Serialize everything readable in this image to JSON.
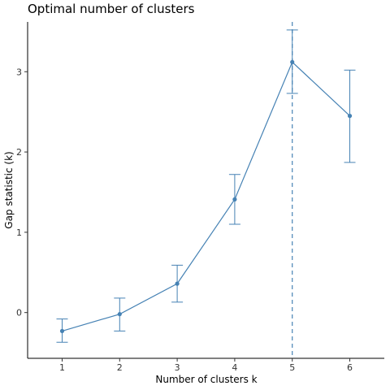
{
  "chart_data": {
    "type": "line",
    "title": "Optimal number of clusters",
    "xlabel": "Number of clusters k",
    "ylabel": "Gap statistic (k)",
    "x": [
      1,
      2,
      3,
      4,
      5,
      6
    ],
    "x_tick_labels": [
      "1",
      "2",
      "3",
      "4",
      "5",
      "6"
    ],
    "y_ticks": [
      0,
      1,
      2,
      3
    ],
    "y_tick_labels": [
      "0",
      "1",
      "2",
      "3"
    ],
    "xlim": [
      0.4,
      6.6
    ],
    "ylim": [
      -0.57,
      3.62
    ],
    "series": [
      {
        "values": [
          -0.23,
          -0.02,
          0.36,
          1.41,
          3.12,
          2.45
        ],
        "error_lower": [
          -0.37,
          -0.23,
          0.13,
          1.1,
          2.73,
          1.87
        ],
        "error_upper": [
          -0.08,
          0.18,
          0.59,
          1.72,
          3.52,
          3.02
        ]
      }
    ],
    "vline_x": 5,
    "vline_style": "dashed",
    "color": "#4682B4",
    "grid": false
  }
}
